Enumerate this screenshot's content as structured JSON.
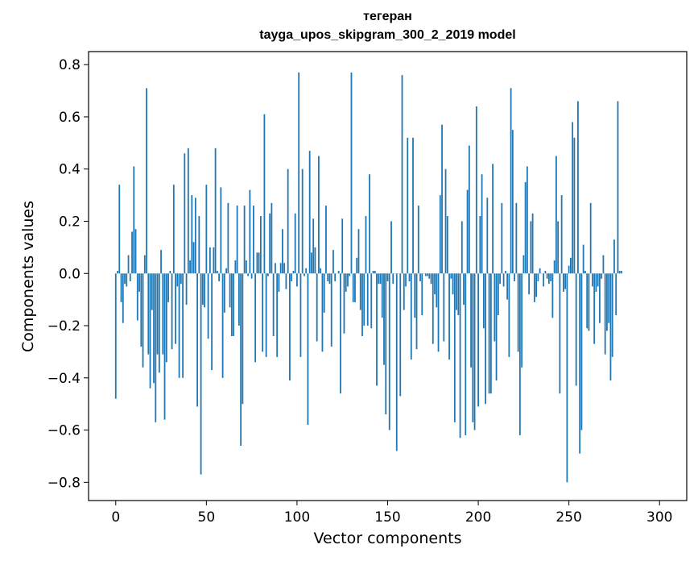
{
  "chart_data": {
    "type": "bar",
    "title": "тегеран",
    "subtitle": "tayga_upos_skipgram_300_2_2019 model",
    "xlabel": "Vector components",
    "ylabel": "Components values",
    "xlim": [
      -15,
      315
    ],
    "ylim": [
      -0.87,
      0.85
    ],
    "xticks": [
      0,
      50,
      100,
      150,
      200,
      250,
      300
    ],
    "xtick_labels": [
      "0",
      "50",
      "100",
      "150",
      "200",
      "250",
      "300"
    ],
    "yticks": [
      0.8,
      0.6,
      0.4,
      0.2,
      0.0,
      -0.2,
      -0.4,
      -0.6,
      -0.8
    ],
    "ytick_labels": [
      "0.8",
      "0.6",
      "0.4",
      "0.2",
      "0.0",
      "−0.2",
      "−0.4",
      "−0.6",
      "−0.8"
    ],
    "grid": false,
    "bar_color": "#1f77b4",
    "values": [
      -0.48,
      0.01,
      0.34,
      -0.11,
      -0.19,
      -0.04,
      -0.05,
      0.07,
      -0.03,
      0.16,
      0.41,
      0.17,
      -0.18,
      -0.07,
      -0.28,
      -0.36,
      0.07,
      0.71,
      -0.31,
      -0.44,
      -0.14,
      -0.42,
      -0.57,
      -0.31,
      -0.38,
      0.09,
      -0.31,
      -0.56,
      -0.34,
      -0.11,
      0.01,
      -0.29,
      0.34,
      -0.27,
      -0.05,
      -0.4,
      -0.04,
      -0.4,
      0.46,
      -0.12,
      0.48,
      0.05,
      0.3,
      0.12,
      0.29,
      -0.51,
      0.22,
      -0.77,
      -0.12,
      -0.13,
      0.34,
      -0.25,
      0.1,
      -0.37,
      0.1,
      0.48,
      0.01,
      -0.03,
      0.33,
      -0.4,
      -0.15,
      0.02,
      0.27,
      -0.13,
      -0.24,
      -0.24,
      0.05,
      0.26,
      -0.2,
      -0.66,
      -0.5,
      0.26,
      0.05,
      -0.01,
      0.32,
      -0.02,
      0.26,
      -0.34,
      0.08,
      0.08,
      0.22,
      -0.3,
      0.61,
      -0.32,
      -0.01,
      0.23,
      0.27,
      -0.24,
      0.04,
      -0.32,
      -0.07,
      0.04,
      0.17,
      0.04,
      -0.06,
      0.4,
      -0.41,
      -0.03,
      0.01,
      0.23,
      -0.05,
      0.77,
      -0.32,
      0.4,
      -0.01,
      0.02,
      -0.58,
      0.47,
      0.08,
      0.21,
      0.1,
      -0.26,
      0.45,
      0.02,
      -0.3,
      -0.15,
      0.26,
      -0.03,
      -0.04,
      -0.28,
      0.09,
      -0.03,
      0.0,
      0.01,
      -0.46,
      0.21,
      -0.23,
      -0.07,
      -0.05,
      -0.01,
      0.77,
      -0.11,
      -0.11,
      0.06,
      0.17,
      -0.14,
      -0.24,
      -0.2,
      0.22,
      -0.2,
      0.38,
      -0.21,
      0.01,
      0.01,
      -0.43,
      -0.04,
      -0.04,
      -0.17,
      -0.35,
      -0.54,
      -0.03,
      -0.6,
      0.2,
      -0.04,
      0.0,
      -0.68,
      0.0,
      -0.47,
      0.76,
      -0.14,
      -0.05,
      0.52,
      -0.03,
      -0.33,
      0.52,
      -0.17,
      -0.29,
      0.26,
      -0.03,
      -0.16,
      0.0,
      -0.01,
      -0.01,
      -0.02,
      -0.04,
      -0.27,
      -0.08,
      -0.13,
      -0.3,
      0.3,
      0.57,
      -0.26,
      0.4,
      0.22,
      -0.33,
      -0.02,
      -0.08,
      -0.57,
      -0.14,
      -0.16,
      -0.63,
      0.2,
      -0.12,
      -0.62,
      0.32,
      0.49,
      -0.36,
      -0.57,
      -0.6,
      0.64,
      -0.51,
      0.22,
      0.38,
      -0.21,
      -0.5,
      0.29,
      -0.46,
      -0.46,
      0.42,
      -0.26,
      -0.41,
      -0.16,
      -0.04,
      0.27,
      -0.05,
      0.01,
      -0.1,
      -0.32,
      0.71,
      0.55,
      -0.03,
      0.27,
      -0.3,
      -0.62,
      -0.36,
      0.07,
      0.35,
      0.41,
      -0.08,
      0.2,
      0.23,
      -0.11,
      -0.09,
      -0.03,
      0.02,
      0.0,
      -0.05,
      0.01,
      -0.02,
      -0.04,
      -0.03,
      -0.17,
      0.05,
      0.45,
      0.2,
      -0.46,
      0.3,
      -0.07,
      -0.06,
      -0.8,
      0.03,
      0.06,
      0.58,
      0.52,
      -0.43,
      0.66,
      -0.69,
      -0.6,
      0.11,
      0.01,
      -0.21,
      -0.22,
      0.27,
      -0.05,
      -0.27,
      -0.07,
      -0.05,
      -0.19,
      -0.02,
      0.07,
      -0.31,
      -0.22,
      -0.19,
      -0.41,
      -0.32,
      0.13,
      -0.16,
      0.66,
      0.01,
      0.01
    ]
  }
}
